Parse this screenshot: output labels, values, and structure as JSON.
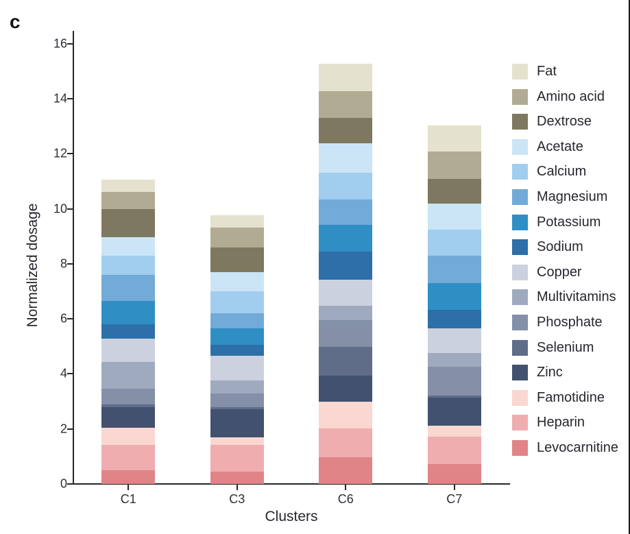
{
  "panel_label": "c",
  "chart_data": {
    "type": "bar",
    "stacked": true,
    "title": "",
    "xlabel": "Clusters",
    "ylabel": "Normalized dosage",
    "categories": [
      "C1",
      "C3",
      "C6",
      "C7"
    ],
    "ylim": [
      0,
      16
    ],
    "yticks": [
      0,
      2,
      4,
      6,
      8,
      10,
      12,
      14,
      16
    ],
    "grid": false,
    "legend_position": "right",
    "legend_order_top_to_bottom": [
      "Fat",
      "Amino acid",
      "Dextrose",
      "Acetate",
      "Calcium",
      "Magnesium",
      "Potassium",
      "Sodium",
      "Copper",
      "Multivitamins",
      "Phosphate",
      "Selenium",
      "Zinc",
      "Famotidine",
      "Heparin",
      "Levocarnitine"
    ],
    "series_bottom_to_top": [
      {
        "name": "Levocarnitine",
        "color": "#e08488",
        "values": [
          0.49,
          0.46,
          0.98,
          0.72
        ]
      },
      {
        "name": "Heparin",
        "color": "#efadb0",
        "values": [
          0.93,
          0.97,
          1.03,
          1.0
        ]
      },
      {
        "name": "Famotidine",
        "color": "#fad7d1",
        "values": [
          0.63,
          0.27,
          0.97,
          0.4
        ]
      },
      {
        "name": "Zinc",
        "color": "#41516f",
        "values": [
          0.74,
          1.01,
          0.96,
          1.02
        ]
      },
      {
        "name": "Selenium",
        "color": "#5f6d89",
        "values": [
          0.1,
          0.07,
          1.04,
          0.07
        ]
      },
      {
        "name": "Phosphate",
        "color": "#8390a8",
        "values": [
          0.58,
          0.5,
          0.97,
          1.04
        ]
      },
      {
        "name": "Multivitamins",
        "color": "#a0aabf",
        "values": [
          0.96,
          0.47,
          0.53,
          0.5
        ]
      },
      {
        "name": "Copper",
        "color": "#ccd1e0",
        "values": [
          0.86,
          0.9,
          0.95,
          0.9
        ]
      },
      {
        "name": "Sodium",
        "color": "#2d6fa8",
        "values": [
          0.52,
          0.4,
          1.01,
          0.68
        ]
      },
      {
        "name": "Potassium",
        "color": "#2f8fc5",
        "values": [
          0.84,
          0.6,
          0.98,
          0.96
        ]
      },
      {
        "name": "Magnesium",
        "color": "#72aad8",
        "values": [
          0.94,
          0.55,
          0.92,
          1.01
        ]
      },
      {
        "name": "Calcium",
        "color": "#a1cdee",
        "values": [
          0.71,
          0.81,
          0.98,
          0.93
        ]
      },
      {
        "name": "Acetate",
        "color": "#cbe5f7",
        "values": [
          0.66,
          0.69,
          1.05,
          0.96
        ]
      },
      {
        "name": "Dextrose",
        "color": "#7d785f",
        "values": [
          1.02,
          0.89,
          0.94,
          0.89
        ]
      },
      {
        "name": "Amino acid",
        "color": "#b2ab93",
        "values": [
          0.63,
          0.72,
          0.97,
          1.0
        ]
      },
      {
        "name": "Fat",
        "color": "#e4e1ce",
        "values": [
          0.45,
          0.45,
          0.98,
          0.94
        ]
      }
    ],
    "bar_totals": [
      11.06,
      9.76,
      15.26,
      13.02
    ],
    "axis_color": "#262626",
    "text_color": "#26262e"
  }
}
